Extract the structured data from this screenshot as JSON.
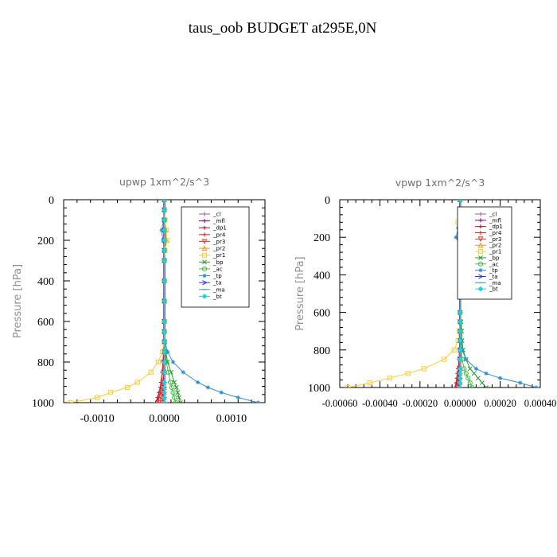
{
  "page_title": "taus_oob  BUDGET at295E,0N",
  "chart_data": [
    {
      "type": "line",
      "title": "upwp   1xm^2/s^3",
      "ylabel": "Pressure [hPa]",
      "xlabel": "",
      "xlim": [
        -0.0015,
        0.0015
      ],
      "ylim": [
        1000,
        0
      ],
      "y_inverted": true,
      "x_tick_labels": [
        "-0.0010",
        "0.0000",
        "0.0010"
      ],
      "x_tick_values": [
        -0.001,
        0.0,
        0.001
      ],
      "y_tick_labels": [
        "0",
        "200",
        "400",
        "600",
        "800",
        "1000"
      ],
      "y_tick_values": [
        0,
        200,
        400,
        600,
        800,
        1000
      ],
      "legend_position": "top-right",
      "y": [
        0,
        50,
        100,
        150,
        200,
        250,
        300,
        400,
        500,
        600,
        650,
        700,
        750,
        800,
        850,
        900,
        925,
        950,
        975,
        1000
      ],
      "series": [
        {
          "name": "_cl",
          "color": "#9060a0",
          "marker": "+",
          "values": [
            0,
            0,
            0,
            0,
            0,
            0,
            0,
            0,
            0,
            0,
            0,
            0,
            0,
            0,
            0,
            0,
            0,
            0,
            0,
            0
          ]
        },
        {
          "name": "_mfl",
          "color": "#800080",
          "marker": "+",
          "values": [
            0,
            0,
            0,
            0,
            0,
            0,
            0,
            0,
            0,
            0,
            0,
            0,
            0,
            0,
            0,
            0,
            0,
            0,
            0,
            0
          ]
        },
        {
          "name": "_dp1",
          "color": "#a01030",
          "marker": "+",
          "values": [
            0,
            0,
            0,
            0,
            0,
            0,
            0,
            0,
            0,
            0,
            0,
            0,
            -1e-05,
            -2e-05,
            -3e-05,
            -5e-05,
            -6e-05,
            -8e-05,
            -0.0001,
            -0.00013
          ]
        },
        {
          "name": "_pr4",
          "color": "#d02020",
          "marker": "+",
          "values": [
            0,
            0,
            0,
            0,
            0,
            0,
            0,
            0,
            0,
            0,
            0,
            0,
            -1e-05,
            -2e-05,
            -3e-05,
            -4e-05,
            -5e-05,
            -6e-05,
            -8e-05,
            -0.0001
          ]
        },
        {
          "name": "_pr3",
          "color": "#ff3030",
          "marker": "v",
          "values": [
            0,
            0,
            0,
            0,
            0,
            0,
            0,
            0,
            0,
            0,
            0,
            0,
            0,
            -1e-05,
            -1e-05,
            -2e-05,
            -3e-05,
            -4e-05,
            -5e-05,
            -6e-05
          ]
        },
        {
          "name": "_pr2",
          "color": "#ff9020",
          "marker": "^",
          "values": [
            0,
            0,
            0,
            2e-05,
            3e-05,
            0,
            0,
            0,
            0,
            0,
            0,
            0,
            0,
            0,
            0,
            0,
            0,
            0,
            0,
            0
          ]
        },
        {
          "name": "_pr1",
          "color": "#ffcc30",
          "marker": "s",
          "values": [
            0,
            0,
            1e-05,
            3e-05,
            4e-05,
            1e-05,
            0,
            0,
            0,
            0,
            0,
            0,
            -3e-05,
            -9e-05,
            -0.0002,
            -0.0004,
            -0.00055,
            -0.0008,
            -0.001,
            -0.0014
          ]
        },
        {
          "name": "_bp",
          "color": "#2a9a2a",
          "marker": "x",
          "values": [
            0,
            0,
            0,
            0,
            0,
            0,
            0,
            0,
            0,
            0,
            0,
            5e-06,
            2e-05,
            5e-05,
            0.0001,
            0.00015,
            0.00018,
            0.0002,
            0.00022,
            0.00024
          ]
        },
        {
          "name": "_ac",
          "color": "#40c040",
          "marker": "o",
          "values": [
            0,
            0,
            0,
            0,
            0,
            0,
            0,
            0,
            0,
            0,
            0,
            0,
            1e-05,
            3e-05,
            6e-05,
            9e-05,
            0.00011,
            0.00013,
            0.00015,
            0.00017
          ]
        },
        {
          "name": "_tp",
          "color": "#3090d0",
          "marker": "*",
          "values": [
            0,
            0,
            -1e-05,
            -4e-05,
            -2e-05,
            0,
            0,
            0,
            0,
            0,
            0,
            1e-05,
            5e-05,
            0.00013,
            0.00028,
            0.0005,
            0.00065,
            0.00085,
            0.0011,
            0.0014
          ]
        },
        {
          "name": "_ta",
          "color": "#3030d0",
          "marker": ">",
          "values": [
            0,
            0,
            0,
            0,
            0,
            0,
            0,
            0,
            0,
            0,
            0,
            0,
            0,
            0,
            0,
            0,
            0,
            0,
            0,
            0
          ]
        },
        {
          "name": "_ma",
          "color": "#30a0c0",
          "marker": "-",
          "values": [
            0,
            0,
            0,
            0,
            0,
            0,
            0,
            0,
            0,
            0,
            0,
            0,
            0,
            0,
            0,
            0,
            0,
            0,
            0,
            0
          ]
        },
        {
          "name": "_bt",
          "color": "#20d0e0",
          "marker": "D",
          "values": [
            0,
            0,
            0,
            0,
            0,
            0,
            0,
            0,
            0,
            0,
            0,
            0,
            0,
            0,
            0,
            0,
            0,
            0,
            0,
            0
          ]
        }
      ]
    },
    {
      "type": "line",
      "title": "vpwp   1xm^2/s^3",
      "ylabel": "Pressure [hPa]",
      "xlabel": "",
      "xlim": [
        -0.0006,
        0.0004
      ],
      "ylim": [
        1000,
        0
      ],
      "y_inverted": true,
      "x_tick_labels": [
        "-0.00060",
        "-0.00040",
        "-0.00020",
        "0.00000",
        "0.00020",
        "0.00040"
      ],
      "x_tick_values": [
        -0.0006,
        -0.0004,
        -0.0002,
        0.0,
        0.0002,
        0.0004
      ],
      "y_tick_labels": [
        "0",
        "200",
        "400",
        "600",
        "800",
        "1000"
      ],
      "y_tick_values": [
        0,
        200,
        400,
        600,
        800,
        1000
      ],
      "legend_position": "top-right",
      "y": [
        0,
        50,
        100,
        120,
        150,
        200,
        250,
        300,
        400,
        500,
        600,
        650,
        700,
        750,
        800,
        850,
        900,
        925,
        950,
        975,
        1000
      ],
      "series": [
        {
          "name": "_cl",
          "color": "#9060a0",
          "marker": "+",
          "values": [
            0,
            0,
            0,
            0,
            0,
            0,
            0,
            0,
            0,
            0,
            0,
            0,
            0,
            0,
            0,
            0,
            0,
            0,
            0,
            0,
            0
          ]
        },
        {
          "name": "_mfl",
          "color": "#800080",
          "marker": "+",
          "values": [
            0,
            0,
            0,
            0,
            0,
            0,
            0,
            0,
            0,
            0,
            0,
            0,
            0,
            0,
            0,
            0,
            0,
            0,
            0,
            0,
            0
          ]
        },
        {
          "name": "_dp1",
          "color": "#a01030",
          "marker": "+",
          "values": [
            0,
            0,
            0,
            0,
            0,
            0,
            0,
            0,
            0,
            0,
            0,
            0,
            0,
            0,
            -3e-06,
            -5e-06,
            -1e-05,
            -1.3e-05,
            -1.6e-05,
            -2e-05,
            -2.5e-05
          ]
        },
        {
          "name": "_pr4",
          "color": "#d02020",
          "marker": "+",
          "values": [
            0,
            0,
            0,
            0,
            0,
            0,
            0,
            0,
            0,
            0,
            0,
            0,
            0,
            0,
            -2e-06,
            -4e-06,
            -8e-06,
            -1e-05,
            -1.2e-05,
            -1.5e-05,
            -2e-05
          ]
        },
        {
          "name": "_pr3",
          "color": "#ff3030",
          "marker": "v",
          "values": [
            0,
            0,
            0,
            0,
            0,
            0,
            0,
            0,
            0,
            0,
            0,
            0,
            0,
            0,
            -1e-06,
            -2e-06,
            -4e-06,
            -5e-06,
            -6e-06,
            -8e-06,
            -1e-05
          ]
        },
        {
          "name": "_pr2",
          "color": "#ff9020",
          "marker": "^",
          "values": [
            0,
            0,
            0,
            1e-05,
            0,
            5e-06,
            0,
            0,
            0,
            0,
            0,
            0,
            0,
            0,
            0,
            0,
            0,
            0,
            0,
            0,
            0
          ]
        },
        {
          "name": "_pr1",
          "color": "#ffcc30",
          "marker": "s",
          "values": [
            0,
            0,
            5e-06,
            -1e-05,
            1e-05,
            0,
            0,
            0,
            0,
            0,
            0,
            0,
            -5e-06,
            -1e-05,
            -3e-05,
            -8e-05,
            -0.00018,
            -0.00026,
            -0.00035,
            -0.00045,
            -0.00056
          ]
        },
        {
          "name": "_bp",
          "color": "#2a9a2a",
          "marker": "x",
          "values": [
            0,
            0,
            0,
            0,
            0,
            0,
            0,
            0,
            0,
            0,
            0,
            5e-06,
            8e-06,
            1e-05,
            1.5e-05,
            3e-05,
            5e-05,
            7e-05,
            9e-05,
            0.00011,
            0.00013
          ]
        },
        {
          "name": "_ac",
          "color": "#40c040",
          "marker": "o",
          "values": [
            0,
            0,
            0,
            0,
            0,
            0,
            0,
            0,
            0,
            0,
            0,
            0,
            0,
            0,
            5e-06,
            1e-05,
            2e-05,
            3e-05,
            4e-05,
            5e-05,
            6e-05
          ]
        },
        {
          "name": "_tp",
          "color": "#3090d0",
          "marker": "*",
          "values": [
            0,
            0,
            0,
            3e-05,
            -1e-05,
            -2e-05,
            0,
            0,
            0,
            0,
            0,
            0,
            0,
            5e-06,
            1e-05,
            3e-05,
            8e-05,
            0.00013,
            0.0002,
            0.0003,
            0.00038
          ]
        },
        {
          "name": "_ta",
          "color": "#3030d0",
          "marker": ">",
          "values": [
            0,
            0,
            0,
            0,
            0,
            0,
            0,
            0,
            0,
            0,
            0,
            0,
            0,
            0,
            0,
            0,
            0,
            0,
            0,
            0,
            0
          ]
        },
        {
          "name": "_ma",
          "color": "#30a0c0",
          "marker": "-",
          "values": [
            0,
            0,
            0,
            0,
            0,
            0,
            0,
            0,
            0,
            0,
            0,
            0,
            0,
            0,
            0,
            0,
            0,
            0,
            0,
            0,
            0
          ]
        },
        {
          "name": "_bt",
          "color": "#20d0e0",
          "marker": "D",
          "values": [
            0,
            0,
            0,
            0,
            0,
            0,
            0,
            0,
            0,
            0,
            0,
            0,
            0,
            0,
            0,
            0,
            0,
            0,
            0,
            0,
            0
          ]
        }
      ]
    }
  ]
}
